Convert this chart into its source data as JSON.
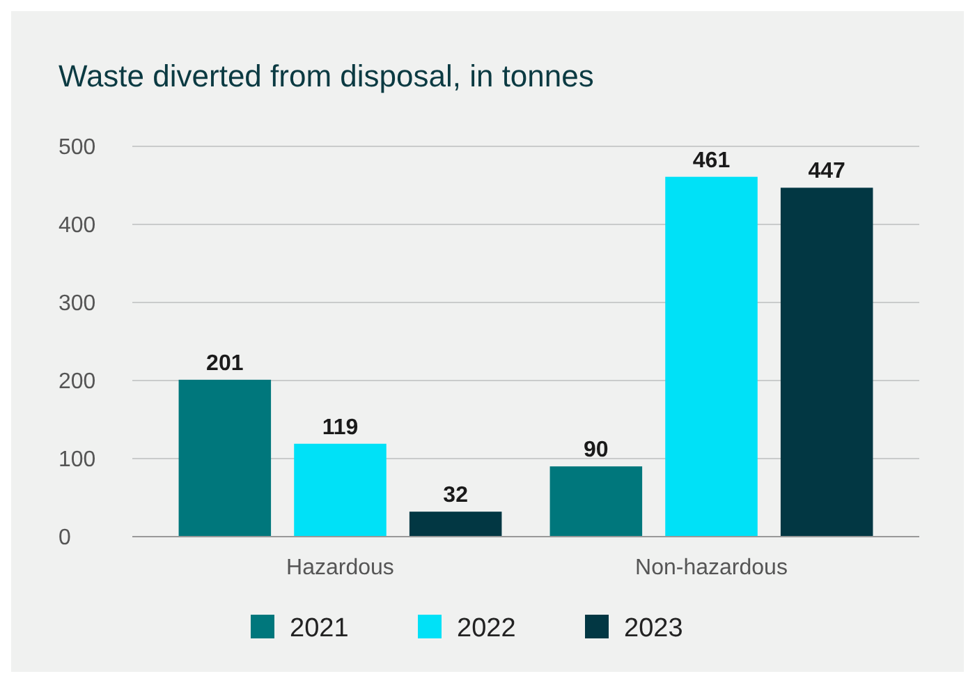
{
  "chart_data": {
    "type": "bar",
    "title": "Waste diverted from disposal, in tonnes",
    "categories": [
      "Hazardous",
      "Non-hazardous"
    ],
    "series": [
      {
        "name": "2021",
        "color": "#00777c",
        "values": [
          201,
          90
        ]
      },
      {
        "name": "2022",
        "color": "#00e1f7",
        "values": [
          119,
          461
        ]
      },
      {
        "name": "2023",
        "color": "#023743",
        "values": [
          32,
          447
        ]
      }
    ],
    "ylim": [
      0,
      500
    ],
    "yticks": [
      0,
      100,
      200,
      300,
      400,
      500
    ],
    "grid": "y",
    "legend": "bottom",
    "data_labels": true
  }
}
